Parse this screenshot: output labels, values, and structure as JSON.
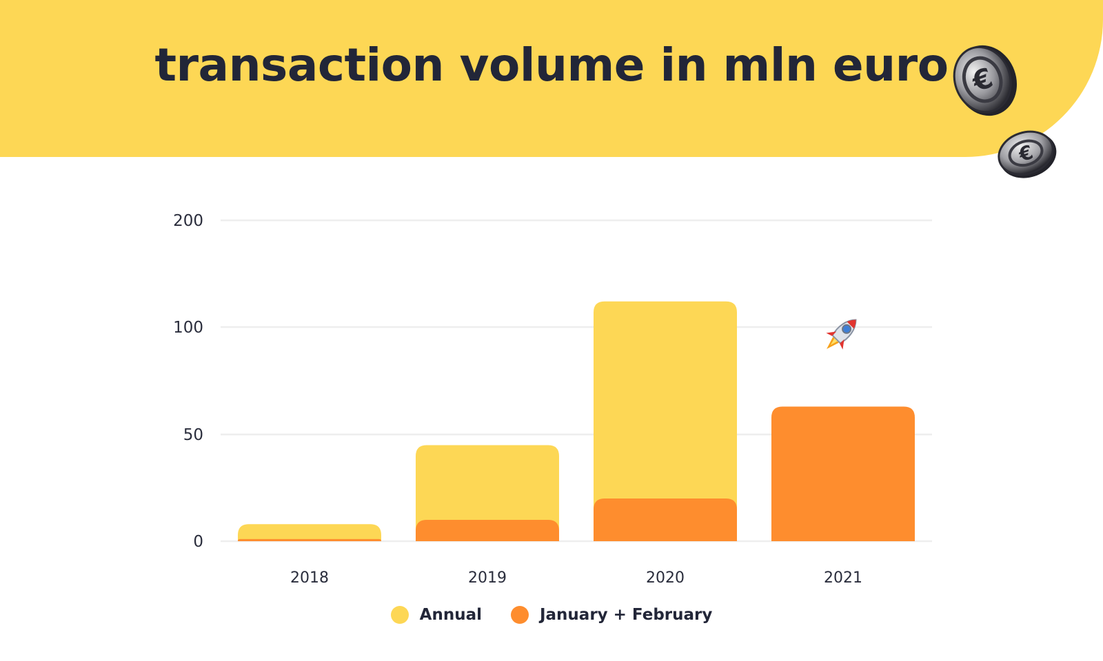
{
  "header": {
    "title": "transaction volume in mln euro",
    "background_color": "#fdd755"
  },
  "decorations": {
    "coin_icon": "euro-coin-icon",
    "rocket_icon": "rocket-emoji-icon"
  },
  "chart_data": {
    "type": "bar",
    "categories": [
      "2018",
      "2019",
      "2020",
      "2021"
    ],
    "series": [
      {
        "name": "Annual",
        "values": [
          8,
          45,
          124,
          null
        ],
        "color": "#fdd755"
      },
      {
        "name": "January + February",
        "values": [
          1,
          10,
          20,
          63
        ],
        "color": "#fe8d2e"
      }
    ],
    "y_ticks": [
      0,
      50,
      100,
      200
    ],
    "ylim": [
      0,
      200
    ],
    "grid": true,
    "legend_position": "bottom",
    "overlap": true
  }
}
